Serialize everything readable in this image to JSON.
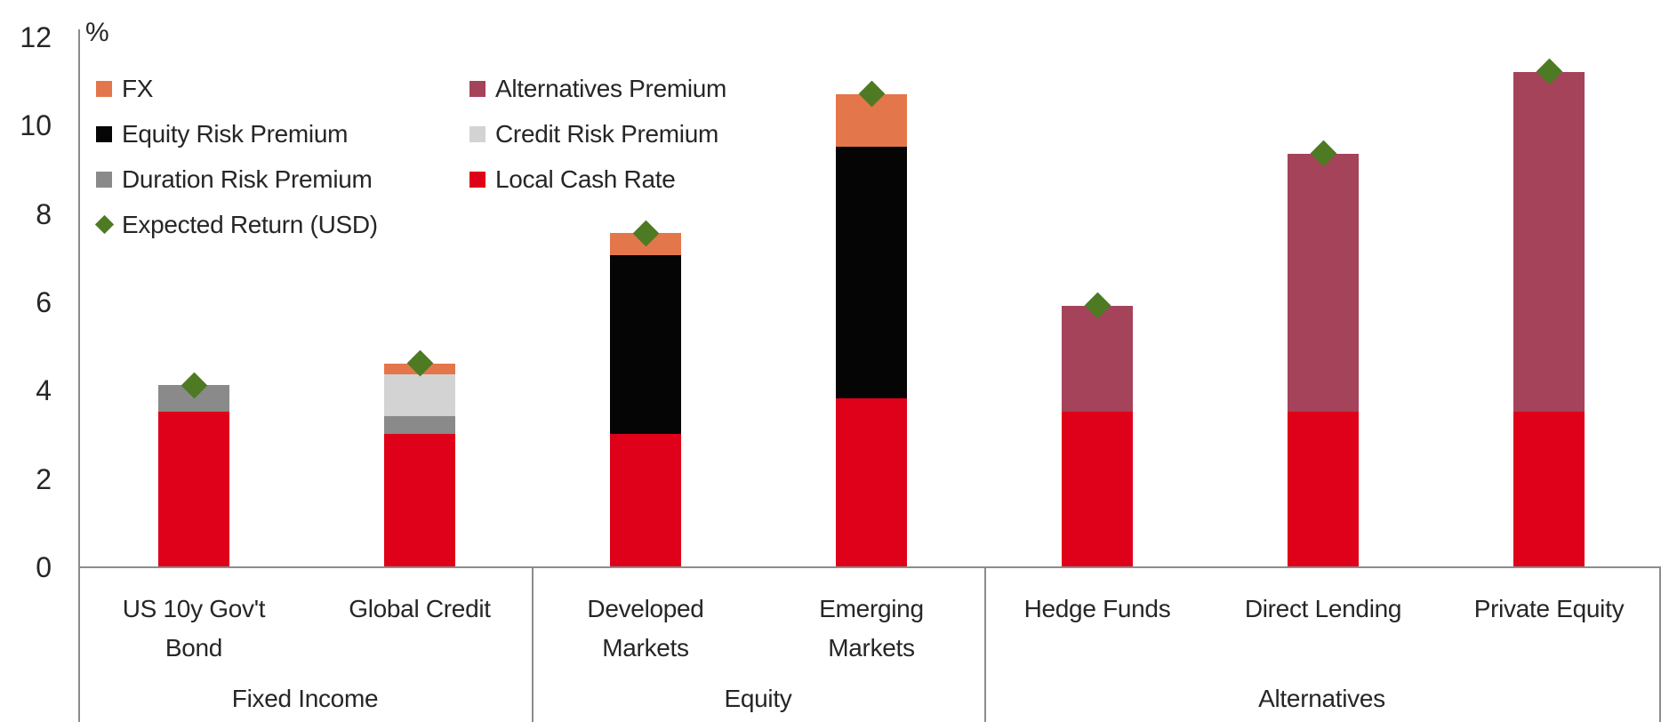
{
  "axis": {
    "unit_label": "%",
    "ticks": [
      0,
      2,
      4,
      6,
      8,
      10,
      12
    ],
    "line_color": "#8c8c8c"
  },
  "legend": {
    "items": [
      {
        "label": "FX",
        "shape": "square",
        "color": "#e3764b"
      },
      {
        "label": "Alternatives Premium",
        "shape": "square",
        "color": "#a5435a"
      },
      {
        "label": "Equity Risk Premium",
        "shape": "square",
        "color": "#050505"
      },
      {
        "label": "Credit Risk Premium",
        "shape": "square",
        "color": "#d3d3d3"
      },
      {
        "label": "Duration Risk Premium",
        "shape": "square",
        "color": "#8a8a8a"
      },
      {
        "label": "Local Cash Rate",
        "shape": "square",
        "color": "#df0019"
      },
      {
        "label": "Expected Return (USD)",
        "shape": "diamond",
        "color": "#4d7a23"
      }
    ]
  },
  "chart_data": {
    "type": "bar",
    "stacked": true,
    "title": "",
    "ylabel": "%",
    "ylim": [
      0,
      12
    ],
    "yticks": [
      0,
      2,
      4,
      6,
      8,
      10,
      12
    ],
    "grid": false,
    "legend_position": "top-left-inside",
    "categories": [
      "US 10y Gov't Bond",
      "Global Credit",
      "Developed Markets",
      "Emerging Markets",
      "Hedge Funds",
      "Direct Lending",
      "Private Equity"
    ],
    "groups": [
      {
        "label": "Fixed Income",
        "bar_indices": [
          0,
          1
        ]
      },
      {
        "label": "Equity",
        "bar_indices": [
          2,
          3
        ]
      },
      {
        "label": "Alternatives",
        "bar_indices": [
          4,
          5,
          6
        ]
      }
    ],
    "series": [
      {
        "name": "Local Cash Rate",
        "color": "#df0019",
        "values": [
          3.5,
          3.0,
          3.0,
          3.8,
          3.5,
          3.5,
          3.5
        ]
      },
      {
        "name": "Duration Risk Premium",
        "color": "#8a8a8a",
        "values": [
          0.6,
          0.4,
          0,
          0,
          0,
          0,
          0
        ]
      },
      {
        "name": "Credit Risk Premium",
        "color": "#d3d3d3",
        "values": [
          0,
          0.95,
          0,
          0,
          0,
          0,
          0
        ]
      },
      {
        "name": "Equity Risk Premium",
        "color": "#050505",
        "values": [
          0,
          0,
          4.05,
          5.7,
          0,
          0,
          0
        ]
      },
      {
        "name": "Alternatives Premium",
        "color": "#a5435a",
        "values": [
          0,
          0,
          0,
          0,
          2.4,
          5.85,
          7.7
        ]
      },
      {
        "name": "FX",
        "color": "#e3764b",
        "values": [
          0,
          0.25,
          0.5,
          1.2,
          0,
          0,
          0
        ]
      }
    ],
    "markers": {
      "name": "Expected Return (USD)",
      "shape": "diamond",
      "color": "#4d7a23",
      "values": [
        4.1,
        4.6,
        7.55,
        10.7,
        5.9,
        9.35,
        11.2
      ]
    },
    "bar_totals": [
      4.1,
      4.6,
      7.55,
      10.7,
      5.9,
      9.35,
      11.2
    ]
  }
}
